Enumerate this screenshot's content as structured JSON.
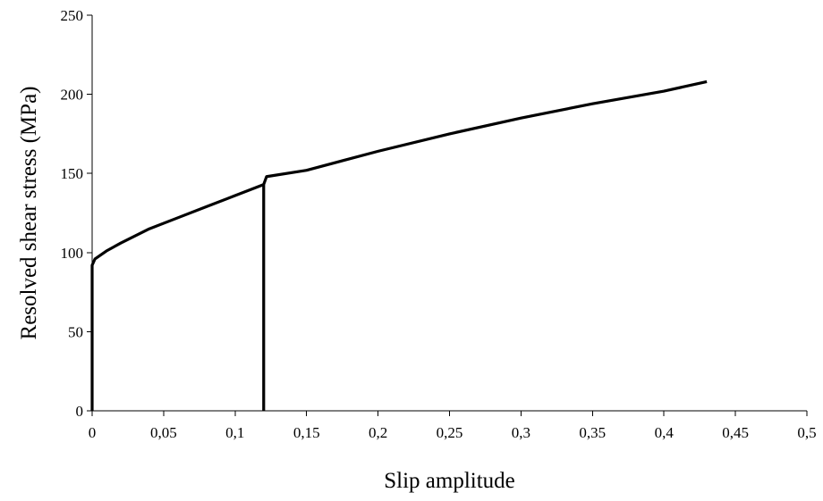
{
  "chart_data": {
    "type": "line",
    "title": "",
    "xlabel": "Slip amplitude",
    "ylabel": "Resolved shear stress (MPa)",
    "xlim": [
      0,
      0.5
    ],
    "ylim": [
      0,
      250
    ],
    "x_ticks": [
      "0",
      "0,05",
      "0,1",
      "0,15",
      "0,2",
      "0,25",
      "0,3",
      "0,35",
      "0,4",
      "0,45",
      "0,5"
    ],
    "y_ticks": [
      "0",
      "50",
      "100",
      "150",
      "200",
      "250"
    ],
    "grid": false,
    "legend": "none",
    "series": [
      {
        "color": "#000000",
        "points": [
          [
            0,
            0
          ],
          [
            0,
            92
          ],
          [
            0.002,
            96
          ],
          [
            0.01,
            101
          ],
          [
            0.02,
            106
          ],
          [
            0.04,
            115
          ],
          [
            0.06,
            122
          ],
          [
            0.08,
            129
          ],
          [
            0.1,
            136
          ],
          [
            0.12,
            143
          ]
        ]
      },
      {
        "color": "#000000",
        "points": [
          [
            0.12,
            0
          ],
          [
            0.12,
            143
          ],
          [
            0.122,
            148
          ],
          [
            0.15,
            152
          ],
          [
            0.2,
            164
          ],
          [
            0.25,
            175
          ],
          [
            0.3,
            185
          ],
          [
            0.35,
            194
          ],
          [
            0.4,
            202
          ],
          [
            0.43,
            208
          ]
        ]
      }
    ]
  }
}
